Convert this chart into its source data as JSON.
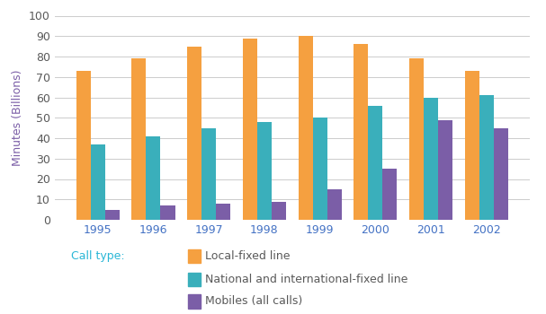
{
  "years": [
    "1995",
    "1996",
    "1997",
    "1998",
    "1999",
    "2000",
    "2001",
    "2002"
  ],
  "local_fixed": [
    73,
    79,
    85,
    89,
    90,
    86,
    79,
    73
  ],
  "national_intl": [
    37,
    41,
    45,
    48,
    50,
    56,
    60,
    61
  ],
  "mobiles": [
    5,
    7,
    8,
    9,
    15,
    25,
    49,
    45
  ],
  "color_local": "#F5A040",
  "color_national": "#3AAFBB",
  "color_mobiles": "#7B5EA7",
  "ylabel": "Minutes (Billions)",
  "ylim": [
    0,
    100
  ],
  "yticks": [
    0,
    10,
    20,
    30,
    40,
    50,
    60,
    70,
    80,
    90,
    100
  ],
  "legend_label_prefix": "Call type:",
  "legend_local": "Local-fixed line",
  "legend_national": "National and international-fixed line",
  "legend_mobiles": "Mobiles (all calls)",
  "legend_label_color": "#29B6D6",
  "legend_text_color": "#595959",
  "xtick_color": "#4472C4",
  "ylabel_color": "#7B5EA7",
  "background_color": "#FFFFFF",
  "bar_width": 0.26,
  "grid_color": "#CCCCCC"
}
